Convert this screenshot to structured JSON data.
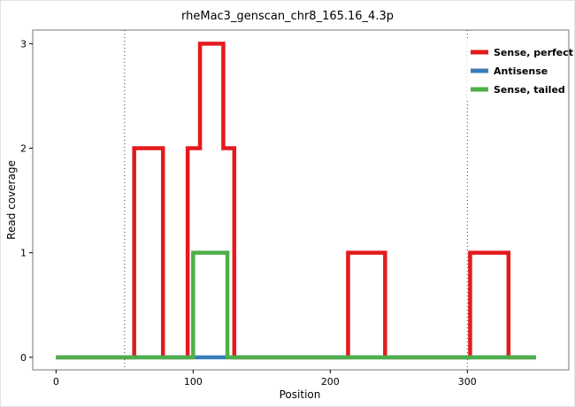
{
  "chart_data": {
    "type": "line",
    "subtype": "step-coverage",
    "title": "rheMac3_genscan_chr8_165.16_4.3p",
    "xlabel": "Position",
    "ylabel": "Read coverage",
    "xlim": [
      -17,
      374
    ],
    "ylim": [
      -0.12,
      3.13
    ],
    "x_ticks": [
      0,
      100,
      200,
      300
    ],
    "y_ticks": [
      0,
      1,
      2,
      3
    ],
    "vlines": [
      50,
      300
    ],
    "grid": false,
    "legend_position": "top-right",
    "panel_border_color": "#8c8c8c",
    "vline_color": "#3a3a3a",
    "series": [
      {
        "name": "Sense, perfect",
        "color": "#e41a1c",
        "steps": [
          [
            0,
            0
          ],
          [
            57,
            2
          ],
          [
            78,
            0
          ],
          [
            96,
            2
          ],
          [
            105,
            3
          ],
          [
            122,
            2
          ],
          [
            130,
            0
          ],
          [
            213,
            1
          ],
          [
            240,
            0
          ],
          [
            302,
            1
          ],
          [
            330,
            0
          ],
          [
            350,
            0
          ]
        ]
      },
      {
        "name": "Antisense",
        "color": "#377eb8",
        "steps": [
          [
            0,
            0
          ],
          [
            350,
            0
          ]
        ]
      },
      {
        "name": "Sense, tailed",
        "color": "#4daf4a",
        "steps": [
          [
            0,
            0
          ],
          [
            100,
            1
          ],
          [
            125,
            0
          ],
          [
            350,
            0
          ]
        ]
      }
    ]
  }
}
